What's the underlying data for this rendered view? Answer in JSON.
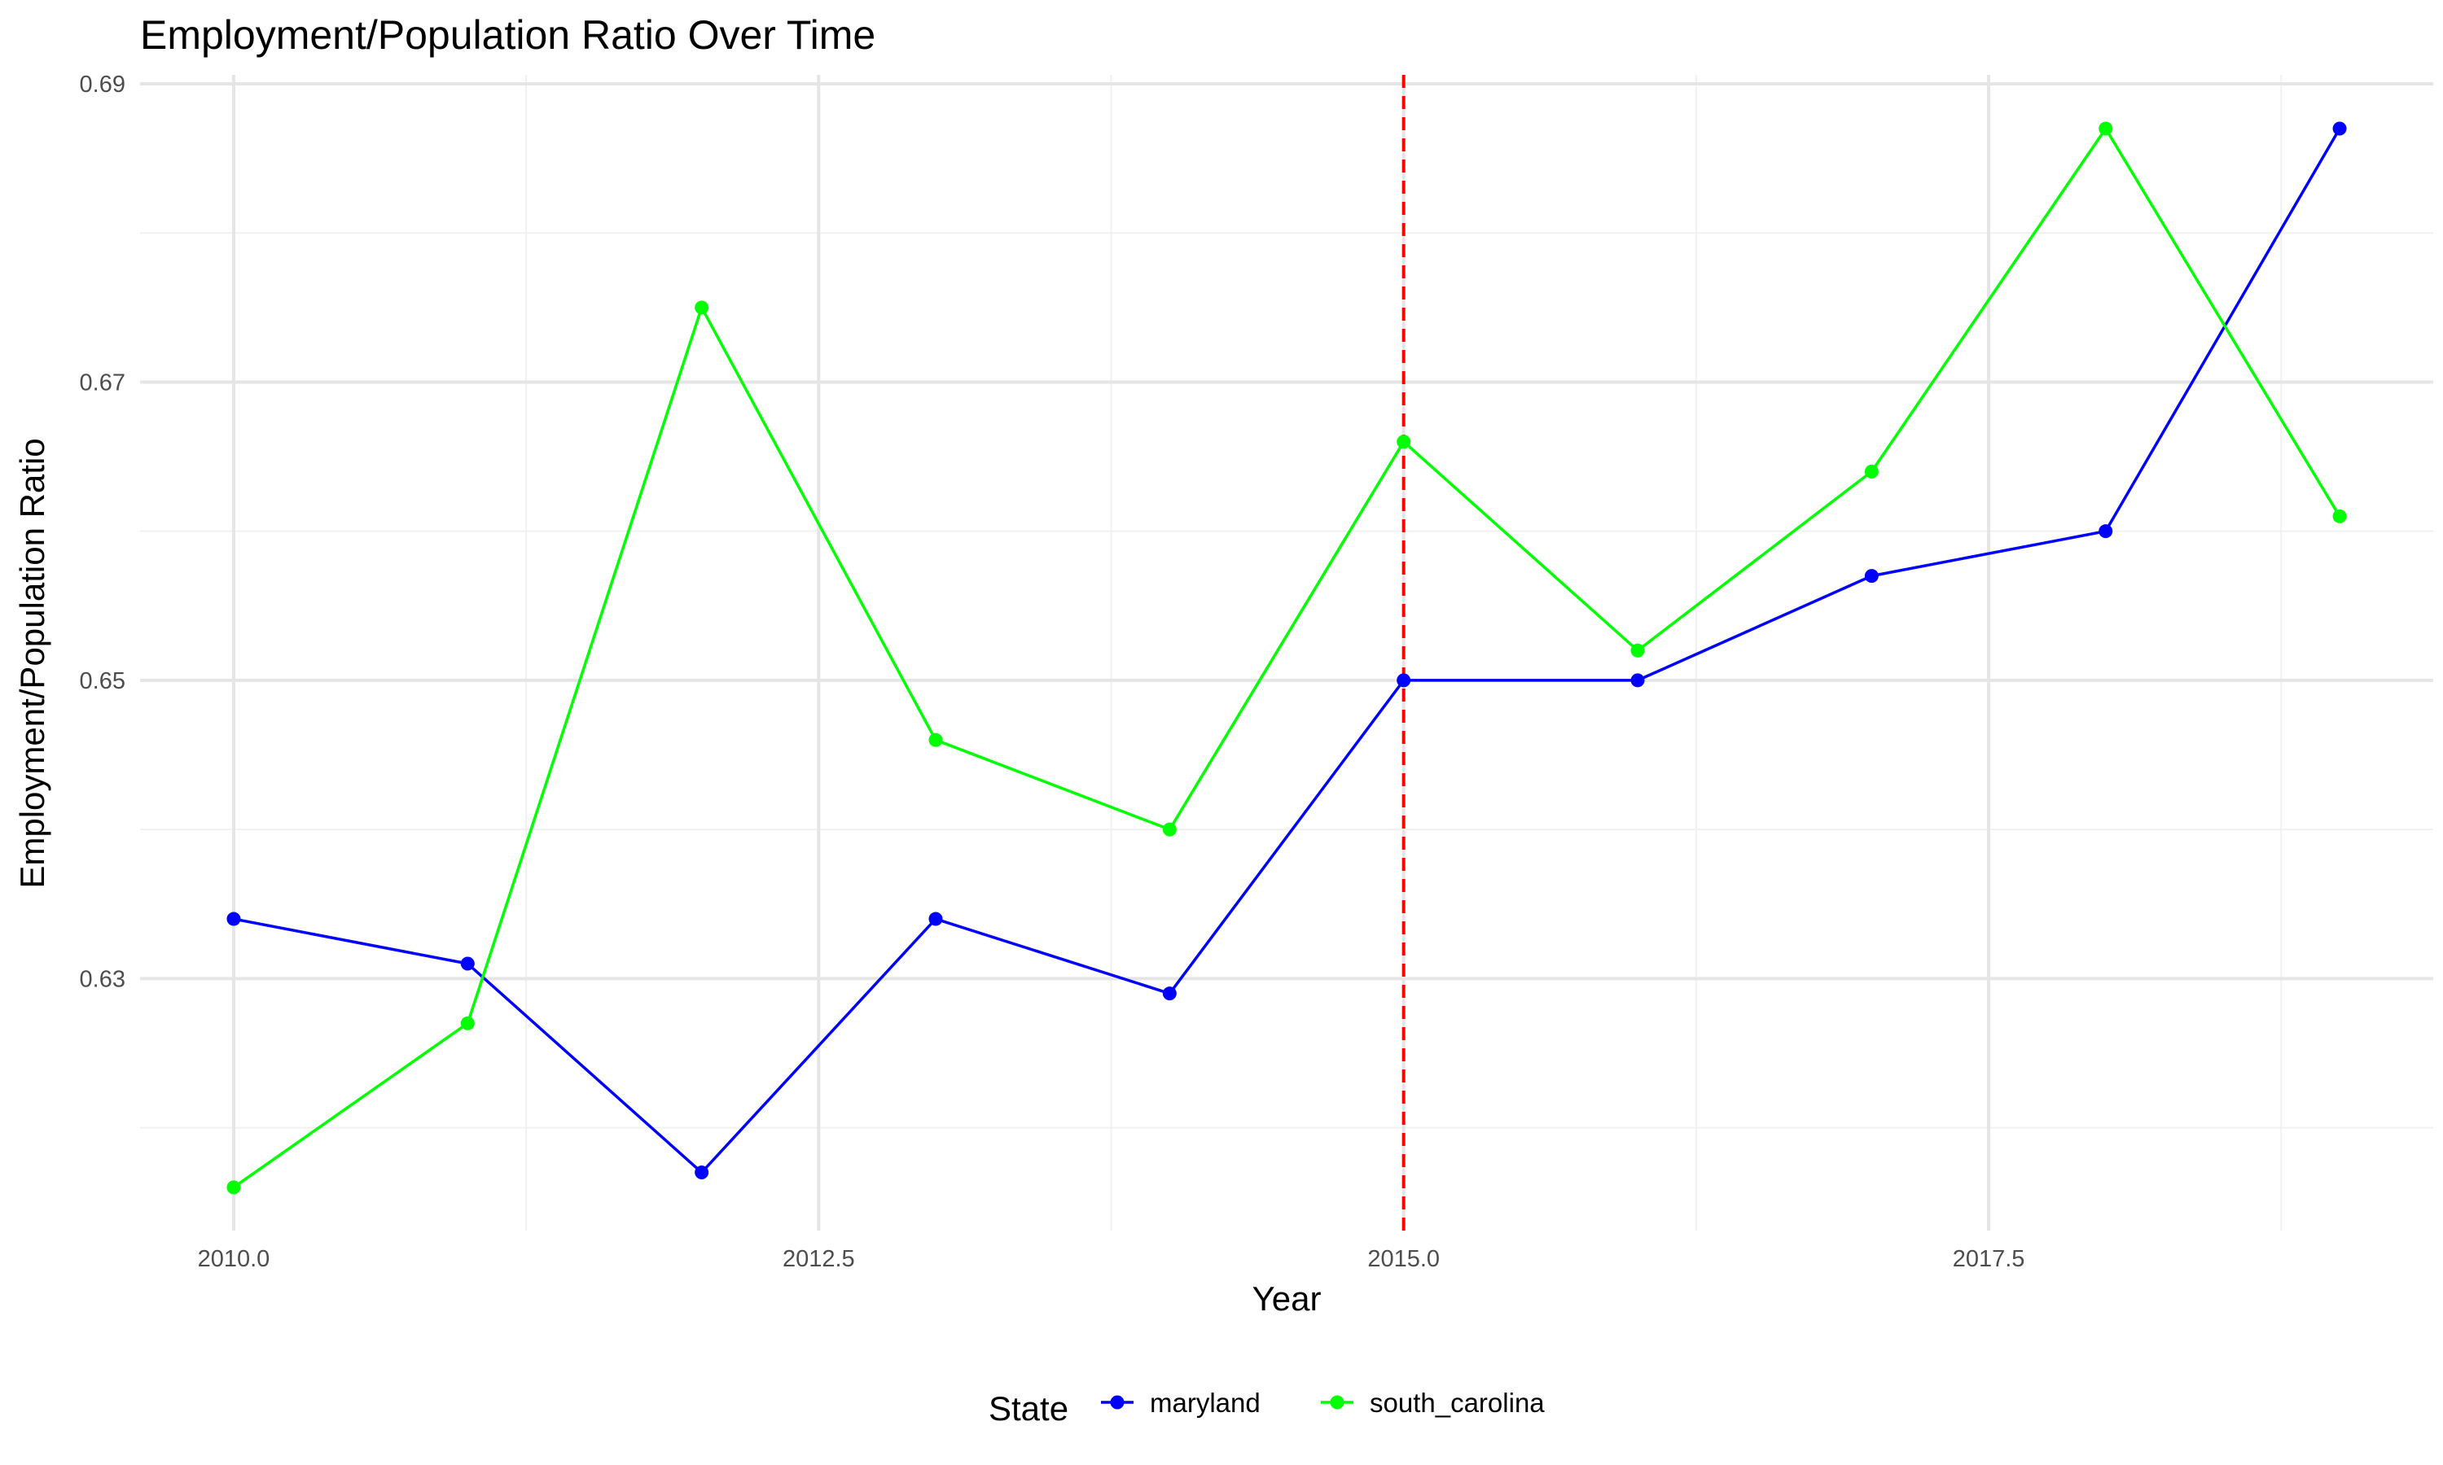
{
  "chart_data": {
    "type": "line",
    "title": "Employment/Population Ratio Over Time",
    "xlabel": "Year",
    "ylabel": "Employment/Population Ratio",
    "xlim": [
      2009.6,
      2019.4
    ],
    "ylim": [
      0.6131,
      0.6906
    ],
    "x_ticks": [
      2010.0,
      2012.5,
      2015.0,
      2017.5
    ],
    "x_tick_labels": [
      "2010.0",
      "2012.5",
      "2015.0",
      "2017.5"
    ],
    "y_ticks": [
      0.63,
      0.65,
      0.67,
      0.69
    ],
    "y_tick_labels": [
      "0.63",
      "0.65",
      "0.67",
      "0.69"
    ],
    "grid": true,
    "legend_title": "State",
    "legend_position": "bottom",
    "reference_line": {
      "x": 2015,
      "color": "#ff0000",
      "style": "dashed"
    },
    "x": [
      2010,
      2011,
      2012,
      2013,
      2014,
      2015,
      2016,
      2017,
      2018,
      2019
    ],
    "series": [
      {
        "name": "maryland",
        "color": "#0000ff",
        "values": [
          0.634,
          0.631,
          0.617,
          0.634,
          0.629,
          0.65,
          0.65,
          0.657,
          0.66,
          0.687
        ]
      },
      {
        "name": "south_carolina",
        "color": "#00ff00",
        "values": [
          0.616,
          0.627,
          0.675,
          0.646,
          0.64,
          0.666,
          0.652,
          0.664,
          0.687,
          0.661
        ]
      }
    ]
  }
}
